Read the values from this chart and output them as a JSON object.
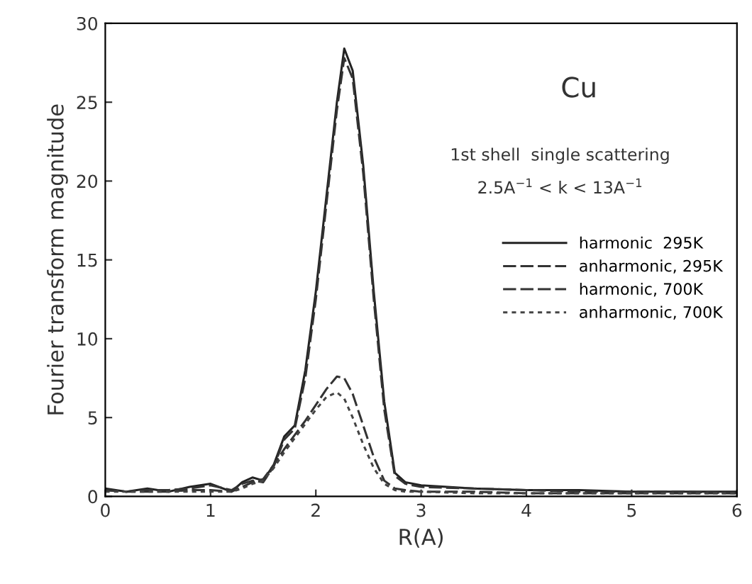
{
  "chart_data": {
    "type": "line",
    "xlabel": "R(A)",
    "ylabel": "Fourier transform magnitude",
    "annotations": [
      "Cu",
      "1st shell  single scattering",
      "2.5A$^{−1}$ < k < 13A$^{−1}$"
    ],
    "x": [
      0,
      0.2,
      0.4,
      0.6,
      0.8,
      1.0,
      1.2,
      1.3,
      1.4,
      1.5,
      1.6,
      1.7,
      1.8,
      1.9,
      2.0,
      2.1,
      2.2,
      2.27,
      2.35,
      2.45,
      2.55,
      2.65,
      2.75,
      2.85,
      3.0,
      3.5,
      4.0,
      4.5,
      5.0,
      5.5,
      6.0
    ],
    "series": [
      {
        "name": "harmonic  295K",
        "color": "#222222",
        "line_style": "solid",
        "values": [
          0.5,
          0.3,
          0.5,
          0.3,
          0.6,
          0.8,
          0.3,
          0.9,
          1.2,
          1.0,
          2.0,
          3.8,
          4.5,
          8,
          13,
          19,
          25,
          28.4,
          27,
          21,
          13,
          6,
          1.5,
          0.9,
          0.7,
          0.5,
          0.4,
          0.4,
          0.3,
          0.3,
          0.3
        ]
      },
      {
        "name": "anharmonic, 295K",
        "color": "#333333",
        "line_style": "dashed",
        "values": [
          0.4,
          0.3,
          0.4,
          0.4,
          0.5,
          0.7,
          0.4,
          0.8,
          1.0,
          0.9,
          1.9,
          3.6,
          4.3,
          7.5,
          12.5,
          18.5,
          24.5,
          27.8,
          26.5,
          20.5,
          12.5,
          5.5,
          1.3,
          0.8,
          0.6,
          0.5,
          0.4,
          0.3,
          0.3,
          0.3,
          0.2
        ]
      },
      {
        "name": "harmonic, 700K",
        "color": "#333333",
        "line_style": "dashed",
        "values": [
          0.4,
          0.3,
          0.3,
          0.3,
          0.4,
          0.4,
          0.3,
          0.6,
          0.9,
          1.1,
          2.0,
          3.0,
          3.9,
          4.8,
          5.8,
          6.8,
          7.6,
          7.5,
          6.5,
          4.5,
          2.5,
          1.0,
          0.5,
          0.4,
          0.3,
          0.3,
          0.2,
          0.2,
          0.2,
          0.2,
          0.2
        ]
      },
      {
        "name": "anharmonic, 700K",
        "color": "#444444",
        "line_style": "dotted",
        "values": [
          0.3,
          0.3,
          0.3,
          0.3,
          0.3,
          0.3,
          0.3,
          0.5,
          0.8,
          1.0,
          1.8,
          2.8,
          3.7,
          4.6,
          5.5,
          6.3,
          6.6,
          6.2,
          5.0,
          3.3,
          1.8,
          0.8,
          0.4,
          0.3,
          0.3,
          0.2,
          0.2,
          0.2,
          0.2,
          0.2,
          0.2
        ]
      }
    ],
    "xlim": [
      0,
      6
    ],
    "xticks": [
      0,
      1,
      2,
      3,
      4,
      5,
      6
    ],
    "ylim": [
      0,
      30
    ],
    "yticks": [
      0,
      5,
      10,
      15,
      20,
      25,
      30
    ],
    "grid": false,
    "legend": "right",
    "marker": "none"
  }
}
